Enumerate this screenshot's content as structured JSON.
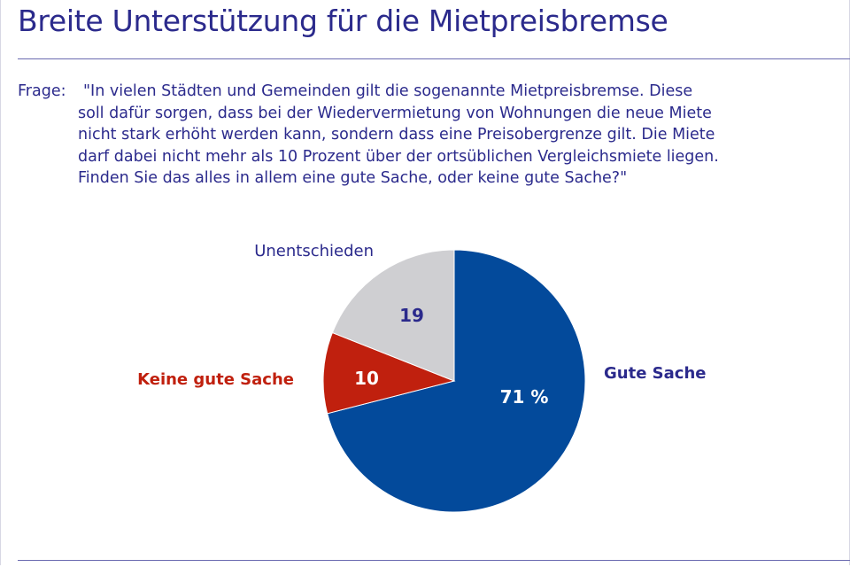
{
  "title": "Breite Unterstützung für die Mietpreisbremse",
  "question": {
    "label": "Frage:",
    "lines": [
      "\"In vielen Städten und Gemeinden gilt die sogenannte Mietpreisbremse. Diese",
      "soll dafür sorgen, dass bei der Wiedervermietung von Wohnungen die neue Miete",
      "nicht stark erhöht werden kann, sondern dass eine Preisobergrenze gilt. Die Miete",
      "darf dabei nicht mehr als 10 Prozent über der ortsüblichen Vergleichsmiete liegen.",
      "Finden Sie das alles in allem eine gute Sache, oder keine gute Sache?\""
    ]
  },
  "chart_data": {
    "type": "pie",
    "title": "",
    "start": "12 o'clock, clockwise",
    "slices": [
      {
        "label": "Gute Sache",
        "value": 71,
        "value_label": "71 %",
        "color": "#034a9b",
        "value_text_color": "#ffffff",
        "label_color": "#2b2a8c"
      },
      {
        "label": "Keine gute Sache",
        "value": 10,
        "value_label": "10",
        "color": "#c0200e",
        "value_text_color": "#ffffff",
        "label_color": "#c0200e"
      },
      {
        "label": "Unentschieden",
        "value": 19,
        "value_label": "19",
        "color": "#cfcfd2",
        "value_text_color": "#2b2a8c",
        "label_color": "#2b2a8c"
      }
    ]
  },
  "colors": {
    "text": "#2b2a8c",
    "rule": "#6a6ab0"
  }
}
